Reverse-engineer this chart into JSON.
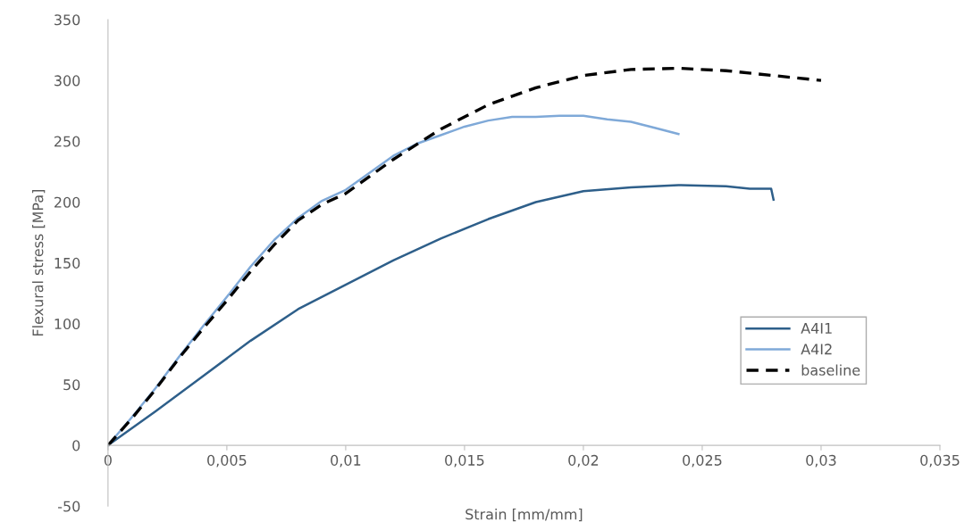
{
  "chart_data": {
    "type": "line",
    "xlabel": "Strain [mm/mm]",
    "ylabel": "Flexural stress [MPa]",
    "xlim": [
      0,
      0.035
    ],
    "ylim": [
      -50,
      350
    ],
    "xticks": [
      {
        "value": 0,
        "label": "0"
      },
      {
        "value": 0.005,
        "label": "0,005"
      },
      {
        "value": 0.01,
        "label": "0,01"
      },
      {
        "value": 0.015,
        "label": "0,015"
      },
      {
        "value": 0.02,
        "label": "0,02"
      },
      {
        "value": 0.025,
        "label": "0,025"
      },
      {
        "value": 0.03,
        "label": "0,03"
      },
      {
        "value": 0.035,
        "label": "0,035"
      }
    ],
    "yticks": [
      -50,
      0,
      50,
      100,
      150,
      200,
      250,
      300,
      350
    ],
    "grid": false,
    "legend": "right",
    "series": [
      {
        "name": "A4I1",
        "color": "#2e5f8a",
        "line_style": "solid",
        "x": [
          0,
          0.002,
          0.004,
          0.006,
          0.008,
          0.01,
          0.012,
          0.014,
          0.016,
          0.018,
          0.02,
          0.022,
          0.024,
          0.026,
          0.027,
          0.0279,
          0.028
        ],
        "values": [
          0,
          28,
          57,
          86,
          112,
          132,
          152,
          170,
          186,
          200,
          209,
          212,
          214,
          213,
          211,
          211,
          202
        ]
      },
      {
        "name": "A4I2",
        "color": "#7fa9d8",
        "line_style": "solid",
        "x": [
          0,
          0.001,
          0.002,
          0.003,
          0.004,
          0.005,
          0.006,
          0.007,
          0.008,
          0.009,
          0.01,
          0.011,
          0.012,
          0.013,
          0.014,
          0.015,
          0.016,
          0.017,
          0.018,
          0.019,
          0.02,
          0.021,
          0.022,
          0.023,
          0.024
        ],
        "values": [
          0,
          23,
          47,
          73,
          98,
          122,
          147,
          169,
          187,
          201,
          210,
          224,
          238,
          248,
          255,
          262,
          267,
          270,
          270,
          271,
          271,
          268,
          266,
          261,
          256
        ]
      },
      {
        "name": "baseline",
        "color": "#000000",
        "line_style": "dashed",
        "x": [
          0,
          0.001,
          0.002,
          0.003,
          0.004,
          0.005,
          0.006,
          0.007,
          0.008,
          0.009,
          0.01,
          0.012,
          0.014,
          0.016,
          0.018,
          0.02,
          0.022,
          0.024,
          0.026,
          0.028,
          0.03
        ],
        "values": [
          0,
          22,
          46,
          72,
          96,
          119,
          143,
          165,
          185,
          198,
          207,
          235,
          260,
          280,
          294,
          304,
          309,
          310,
          308,
          304,
          300
        ]
      }
    ]
  }
}
